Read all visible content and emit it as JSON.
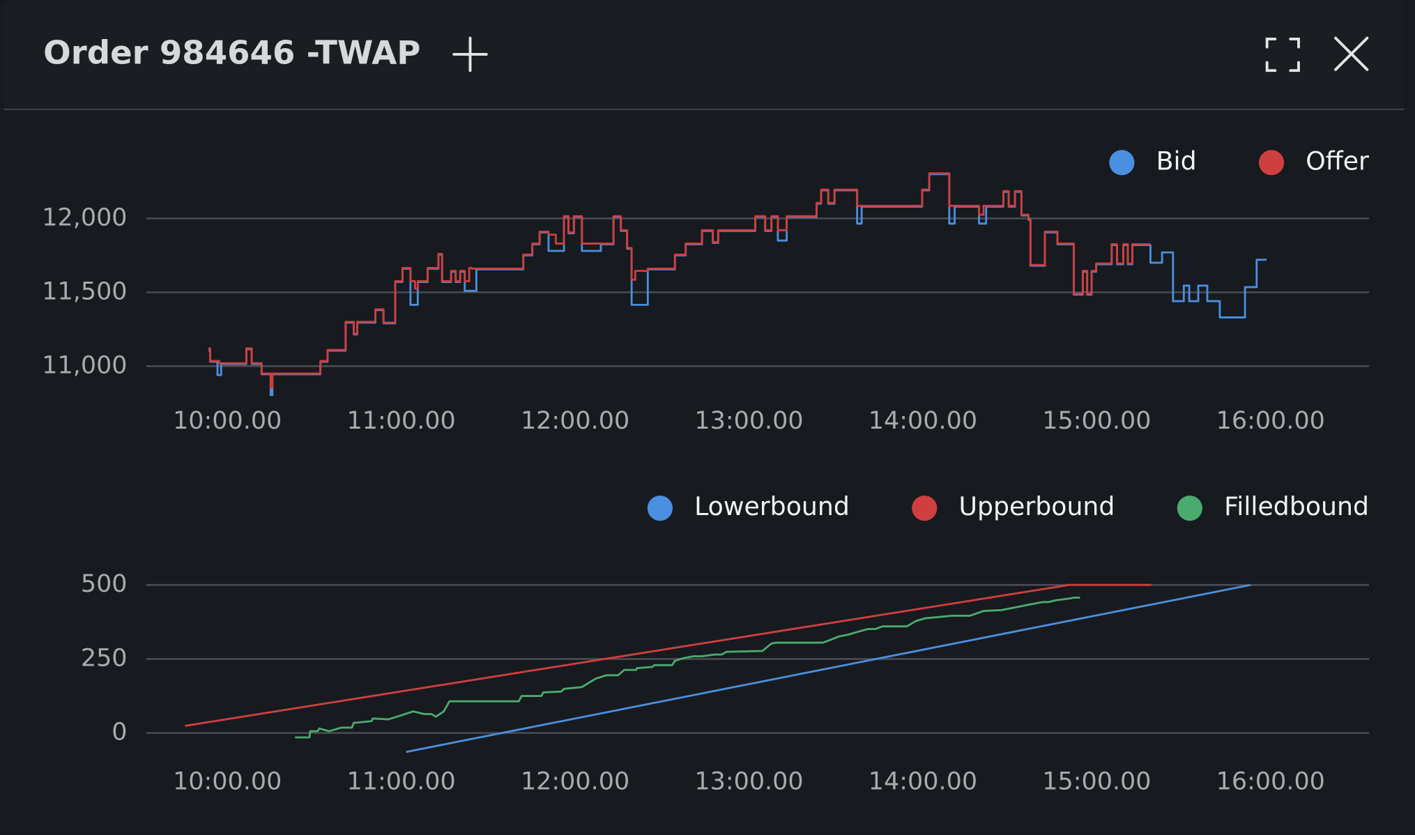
{
  "header": {
    "title": "Order 984646 -TWAP"
  },
  "chart_data": [
    {
      "type": "line",
      "step": true,
      "legend": "top-right",
      "grid": true,
      "xlim": [
        9.533,
        16.566
      ],
      "xticks": [
        {
          "value": 10,
          "label": "10:00.00"
        },
        {
          "value": 11,
          "label": "11:00.00"
        },
        {
          "value": 12,
          "label": "12:00.00"
        },
        {
          "value": 13,
          "label": "13:00.00"
        },
        {
          "value": 14,
          "label": "14:00.00"
        },
        {
          "value": 15,
          "label": "15:00.00"
        },
        {
          "value": 16,
          "label": "16:00.00"
        }
      ],
      "ylim": [
        10790,
        12500
      ],
      "yticks": [
        {
          "value": 11000,
          "label": "11,000"
        },
        {
          "value": 11500,
          "label": "11,500"
        },
        {
          "value": 12000,
          "label": "12,000"
        }
      ],
      "series": [
        {
          "name": "Bid",
          "color": "#4a8fe0",
          "x": [
            9.891,
            9.901,
            9.943,
            9.964,
            10.109,
            10.14,
            10.197,
            10.249,
            10.259,
            10.535,
            10.576,
            10.68,
            10.727,
            10.747,
            10.851,
            10.898,
            10.965,
            11.007,
            11.053,
            11.095,
            11.152,
            11.214,
            11.235,
            11.287,
            11.313,
            11.339,
            11.365,
            11.432,
            11.702,
            11.754,
            11.796,
            11.847,
            11.936,
            11.962,
            11.993,
            12.039,
            12.148,
            12.221,
            12.263,
            12.299,
            12.325,
            12.418,
            12.574,
            12.636,
            12.73,
            12.792,
            12.823,
            13.036,
            13.093,
            13.129,
            13.166,
            13.217,
            13.389,
            13.415,
            13.456,
            13.492,
            13.622,
            13.648,
            13.996,
            14.037,
            14.152,
            14.183,
            14.323,
            14.364,
            14.463,
            14.494,
            14.53,
            14.567,
            14.608,
            14.619,
            14.702,
            14.774,
            14.868,
            14.92,
            14.945,
            14.971,
            14.997,
            15.086,
            15.117,
            15.153,
            15.179,
            15.205,
            15.309,
            15.376,
            15.439,
            15.501,
            15.532,
            15.584,
            15.636,
            15.708,
            15.853,
            15.92,
            15.977
          ],
          "values": [
            11105,
            11030,
            10940,
            11015,
            11115,
            11015,
            10945,
            10805,
            10945,
            11030,
            11105,
            11295,
            11215,
            11295,
            11380,
            11290,
            11570,
            11660,
            11415,
            11570,
            11660,
            11755,
            11570,
            11640,
            11570,
            11640,
            11510,
            11655,
            11750,
            11825,
            11905,
            11780,
            12010,
            11900,
            12010,
            11780,
            11825,
            12010,
            11915,
            11795,
            11415,
            11655,
            11750,
            11825,
            11915,
            11835,
            11915,
            12010,
            11915,
            12010,
            11850,
            12010,
            12100,
            12190,
            12100,
            12190,
            11965,
            12080,
            12190,
            12300,
            11965,
            12080,
            11965,
            12080,
            12180,
            12080,
            12180,
            12020,
            11990,
            11680,
            11905,
            11825,
            11485,
            11640,
            11485,
            11640,
            11690,
            11820,
            11690,
            11820,
            11690,
            11820,
            11700,
            11770,
            11440,
            11545,
            11440,
            11545,
            11440,
            11330,
            11535,
            11720,
            11720
          ]
        },
        {
          "name": "Offer",
          "color": "#cf3f3f",
          "x": [
            9.891,
            9.901,
            9.953,
            10.109,
            10.14,
            10.197,
            10.249,
            10.259,
            10.535,
            10.576,
            10.68,
            10.727,
            10.747,
            10.851,
            10.898,
            10.965,
            11.007,
            11.053,
            11.079,
            11.095,
            11.152,
            11.214,
            11.235,
            11.287,
            11.313,
            11.339,
            11.365,
            11.391,
            11.406,
            11.702,
            11.754,
            11.796,
            11.847,
            11.889,
            11.936,
            11.962,
            11.993,
            12.039,
            12.221,
            12.263,
            12.299,
            12.325,
            12.346,
            12.418,
            12.574,
            12.636,
            12.73,
            12.792,
            12.823,
            13.036,
            13.093,
            13.129,
            13.166,
            13.217,
            13.389,
            13.415,
            13.456,
            13.492,
            13.622,
            13.996,
            14.037,
            14.152,
            14.323,
            14.349,
            14.463,
            14.494,
            14.53,
            14.567,
            14.608,
            14.619,
            14.702,
            14.774,
            14.868,
            14.92,
            14.945,
            14.971,
            14.997,
            15.086,
            15.117,
            15.153,
            15.179,
            15.205,
            15.309
          ],
          "values": [
            11120,
            11035,
            11020,
            11120,
            11020,
            10950,
            10855,
            10950,
            11035,
            11110,
            11300,
            11220,
            11300,
            11385,
            11295,
            11575,
            11665,
            11575,
            11525,
            11575,
            11665,
            11760,
            11575,
            11645,
            11575,
            11645,
            11575,
            11665,
            11660,
            11755,
            11830,
            11910,
            11890,
            11830,
            12015,
            11905,
            12015,
            11830,
            12015,
            11920,
            11800,
            11585,
            11645,
            11660,
            11755,
            11830,
            11920,
            11840,
            11920,
            12015,
            11920,
            12015,
            11920,
            12015,
            12105,
            12195,
            12105,
            12195,
            12085,
            12195,
            12305,
            12085,
            12025,
            12085,
            12185,
            12085,
            12185,
            12025,
            11995,
            11685,
            11910,
            11830,
            11490,
            11645,
            11490,
            11645,
            11695,
            11825,
            11695,
            11825,
            11695,
            11825,
            11825
          ]
        }
      ]
    },
    {
      "type": "line",
      "step": false,
      "legend": "top-right",
      "grid": true,
      "xlim": [
        9.533,
        16.566
      ],
      "xticks": [
        {
          "value": 10,
          "label": "10:00.00"
        },
        {
          "value": 11,
          "label": "11:00.00"
        },
        {
          "value": 12,
          "label": "12:00.00"
        },
        {
          "value": 13,
          "label": "13:00.00"
        },
        {
          "value": 14,
          "label": "14:00.00"
        },
        {
          "value": 15,
          "label": "15:00.00"
        },
        {
          "value": 16,
          "label": "16:00.00"
        }
      ],
      "ylim": [
        -85,
        555
      ],
      "yticks": [
        0,
        250,
        500
      ],
      "series": [
        {
          "name": "Lowerbound",
          "color": "#4a8fe0",
          "x": [
            11.028,
            15.885
          ],
          "values": [
            -64,
            500
          ]
        },
        {
          "name": "Upperbound",
          "color": "#cf3f3f",
          "x": [
            9.756,
            14.842,
            15.314
          ],
          "values": [
            24,
            500,
            500
          ]
        },
        {
          "name": "Filledbound",
          "color": "#4aab6e",
          "x": [
            10.389,
            10.472,
            10.477,
            10.519,
            10.529,
            10.586,
            10.654,
            10.716,
            10.727,
            10.83,
            10.836,
            10.924,
            10.976,
            11.069,
            11.131,
            11.173,
            11.199,
            11.245,
            11.277,
            11.339,
            11.676,
            11.692,
            11.806,
            11.816,
            11.92,
            11.936,
            12.039,
            12.075,
            12.117,
            12.18,
            12.247,
            12.283,
            12.351,
            12.356,
            12.444,
            12.455,
            12.558,
            12.574,
            12.626,
            12.678,
            12.73,
            12.766,
            12.802,
            12.844,
            12.87,
            13.077,
            13.129,
            13.155,
            13.425,
            13.466,
            13.518,
            13.57,
            13.622,
            13.684,
            13.726,
            13.768,
            13.908,
            13.96,
            14.011,
            14.115,
            14.167,
            14.271,
            14.349,
            14.452,
            14.53,
            14.608,
            14.686,
            14.722,
            14.764,
            14.842,
            14.868,
            14.904
          ],
          "values": [
            -15,
            -15,
            6,
            6,
            15,
            6,
            18,
            18,
            34,
            40,
            49,
            46,
            55,
            73,
            64,
            64,
            55,
            73,
            107,
            107,
            107,
            125,
            125,
            137,
            140,
            149,
            155,
            168,
            183,
            195,
            195,
            213,
            213,
            219,
            223,
            229,
            229,
            244,
            253,
            259,
            259,
            262,
            265,
            265,
            274,
            277,
            302,
            305,
            305,
            314,
            326,
            332,
            341,
            351,
            351,
            360,
            360,
            378,
            387,
            393,
            396,
            396,
            412,
            415,
            424,
            433,
            442,
            442,
            448,
            454,
            457,
            457
          ]
        }
      ]
    }
  ]
}
